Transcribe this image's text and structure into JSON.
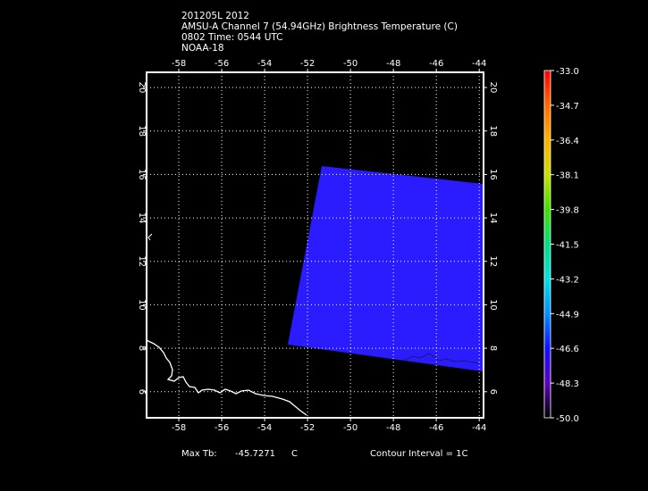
{
  "header": {
    "line1": "201205L 2012",
    "line2": "AMSU-A Channel 7 (54.94GHz) Brightness Temperature (C)",
    "line3": "0802 Time: 0544 UTC",
    "line4": "NOAA-18"
  },
  "map": {
    "lon_labels": [
      "-58",
      "-56",
      "-54",
      "-52",
      "-50",
      "-48",
      "-46",
      "-44"
    ],
    "lat_labels": [
      "20",
      "18",
      "16",
      "14",
      "12",
      "10",
      "8",
      "6"
    ],
    "lon_range": [
      -59.5,
      -43.8
    ],
    "lat_range": [
      4.8,
      20.7
    ],
    "grid": true,
    "swath_color": "#2a1cff",
    "coast_color": "#ffffff"
  },
  "colorbar": {
    "labels": [
      "-33.0",
      "-34.7",
      "-36.4",
      "-38.1",
      "-39.8",
      "-41.5",
      "-43.2",
      "-44.9",
      "-46.6",
      "-48.3",
      "-50.0"
    ],
    "colors": [
      "#ff0000",
      "#ff6a00",
      "#ffb000",
      "#c8e000",
      "#40e000",
      "#00e080",
      "#00e0e0",
      "#0090ff",
      "#1010ff",
      "#6000c0",
      "#300060",
      "#000000"
    ]
  },
  "footer": {
    "max_tb_label": "Max Tb:",
    "max_tb_value": "-45.7271",
    "max_tb_unit": "C",
    "contour_interval": "Contour Interval = 1C"
  }
}
